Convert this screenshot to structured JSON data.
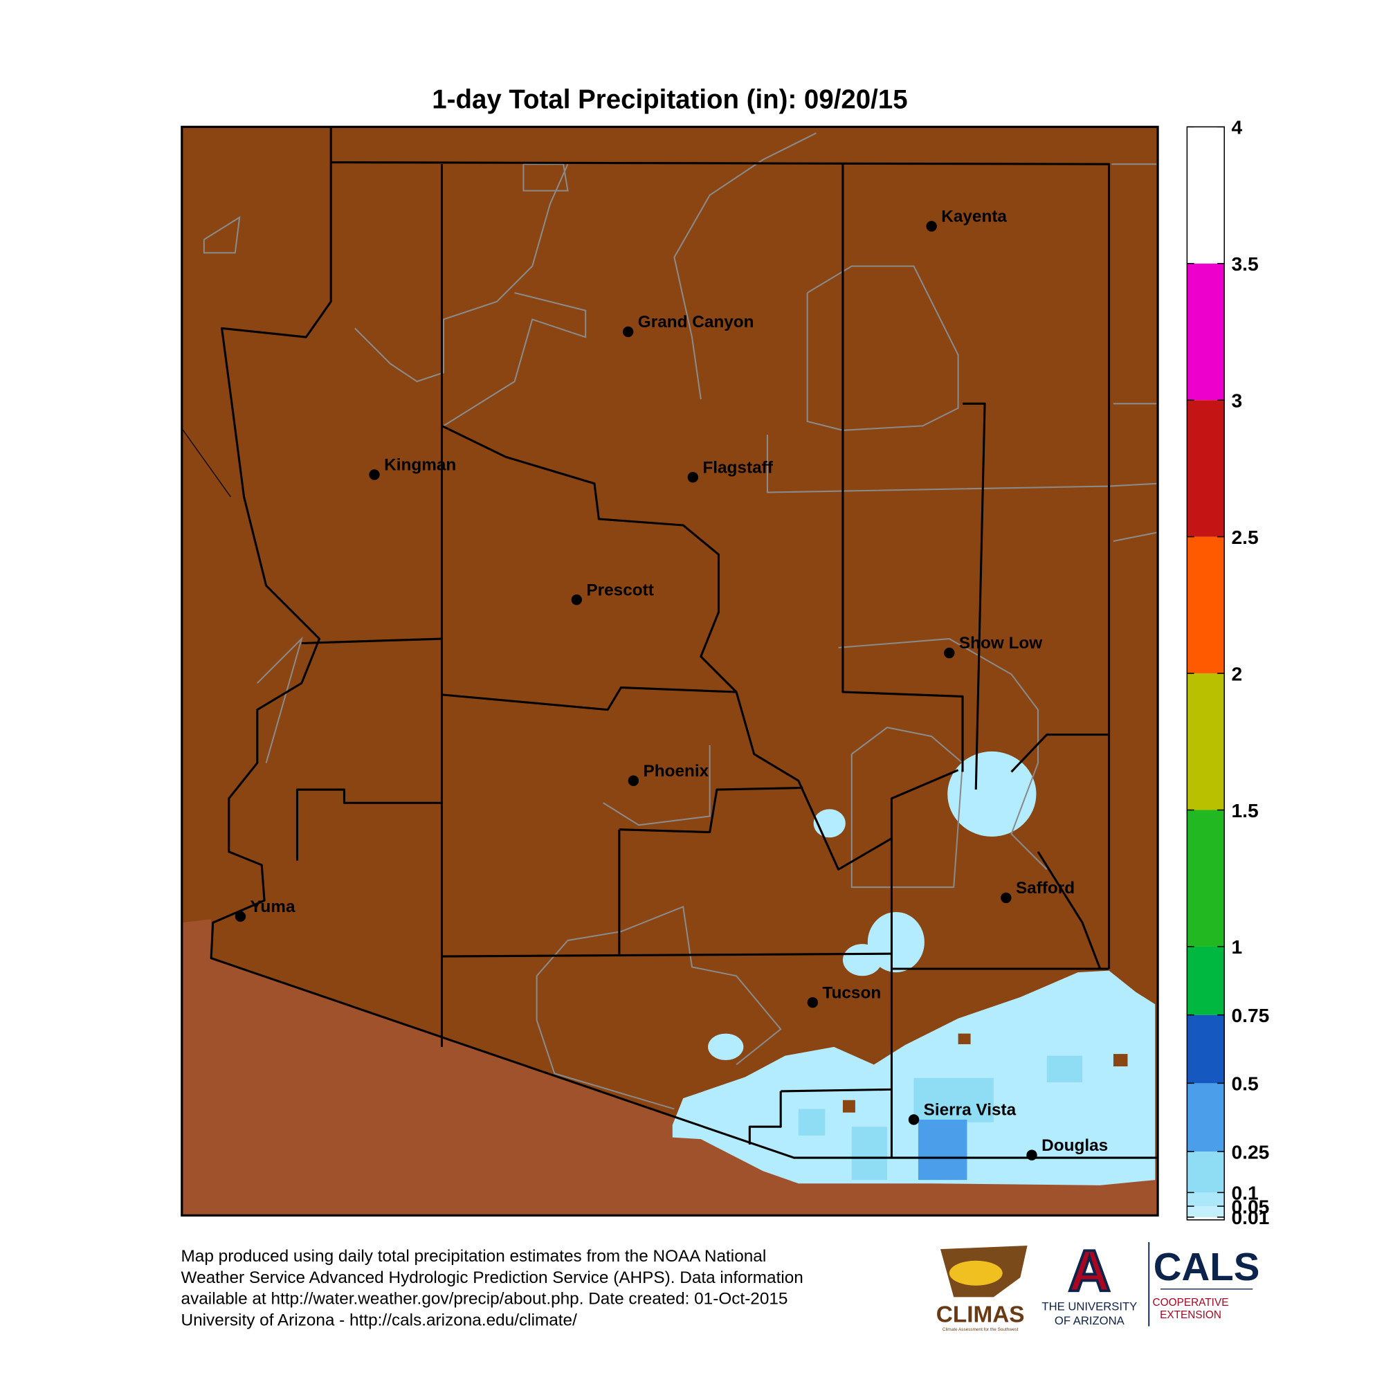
{
  "title": "1-day Total Precipitation (in): 09/20/15",
  "colorbar": {
    "lim": [
      0,
      4
    ],
    "ticks": [
      0.01,
      0.05,
      0.1,
      0.25,
      0.5,
      0.75,
      1,
      1.5,
      2,
      2.5,
      3,
      3.5,
      4
    ],
    "colors": [
      "#c4f0fd",
      "#ade8fa",
      "#8fdcf5",
      "#4a9eea",
      "#1458c0",
      "#00b840",
      "#22b822",
      "#b8c000",
      "#ff5a00",
      "#c41414",
      "#ee00cc",
      "#ffffff"
    ]
  },
  "cities": [
    "Kayenta",
    "Grand Canyon",
    "Kingman",
    "Flagstaff",
    "Prescott",
    "Show Low",
    "Phoenix",
    "Safford",
    "Yuma",
    "Tucson",
    "Sierra Vista",
    "Douglas"
  ],
  "footer": [
    "Map produced using daily total precipitation estimates from the NOAA National",
    "Weather Service Advanced Hydrologic Prediction Service (AHPS). Data information",
    "available at http://water.weather.gov/precip/about.php. Date created: 01-Oct-2015",
    "University of Arizona - http://cals.arizona.edu/climate/"
  ],
  "logos": {
    "climas": "CLIMAS",
    "climas_sub": "Climate Assessment for the Southwest",
    "ua_mark": "A",
    "ua_line1": "THE UNIVERSITY",
    "ua_line2": "OF ARIZONA",
    "cals": "CALS",
    "cals_line1": "COOPERATIVE",
    "cals_line2": "EXTENSION"
  }
}
